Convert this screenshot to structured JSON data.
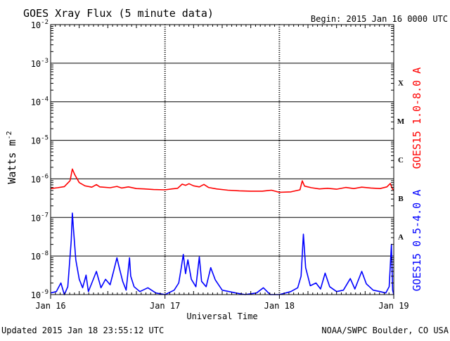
{
  "header": {
    "title": "GOES Xray Flux (5 minute data)",
    "begin": "Begin:  2015 Jan 16 0000 UTC"
  },
  "footer": {
    "updated": "Updated 2015 Jan 18 23:55:12 UTC",
    "source": "NOAA/SWPC Boulder, CO USA"
  },
  "colors": {
    "long_channel": "#ff0000",
    "short_channel": "#0000ff",
    "grid": "#000000",
    "background": "#ffffff"
  },
  "chart_data": {
    "type": "line",
    "title": "GOES Xray Flux (5 minute data)",
    "xlabel": "Universal Time",
    "ylabel_main": "Watts m",
    "ylabel_sup": "-2",
    "yscale": "log",
    "ylim": [
      1e-09,
      0.01
    ],
    "x_unit": "days since 2015 Jan 16 0000 UTC",
    "xlim": [
      0,
      3
    ],
    "x_ticks": [
      {
        "x": 0,
        "label": "Jan 16"
      },
      {
        "x": 1,
        "label": "Jan 17"
      },
      {
        "x": 2,
        "label": "Jan 18"
      },
      {
        "x": 3,
        "label": "Jan 19"
      }
    ],
    "y_ticks": [
      {
        "exp": -2,
        "base": "10",
        "sup": "-2"
      },
      {
        "exp": -3,
        "base": "10",
        "sup": "-3"
      },
      {
        "exp": -4,
        "base": "10",
        "sup": "-4"
      },
      {
        "exp": -5,
        "base": "10",
        "sup": "-5"
      },
      {
        "exp": -6,
        "base": "10",
        "sup": "-6"
      },
      {
        "exp": -7,
        "base": "10",
        "sup": "-7"
      },
      {
        "exp": -8,
        "base": "10",
        "sup": "-8"
      },
      {
        "exp": -9,
        "base": "10",
        "sup": "-9"
      }
    ],
    "flare_classes": [
      {
        "label": "X",
        "exp": -3.5
      },
      {
        "label": "M",
        "exp": -4.5
      },
      {
        "label": "C",
        "exp": -5.5
      },
      {
        "label": "B",
        "exp": -6.5
      },
      {
        "label": "A",
        "exp": -7.5
      }
    ],
    "grid": true,
    "series": [
      {
        "name": "GOES15 1.0-8.0 A",
        "color": "#ff0000",
        "points": [
          [
            0.0,
            5.6e-07
          ],
          [
            0.06,
            5.9e-07
          ],
          [
            0.12,
            6.3e-07
          ],
          [
            0.17,
            9e-07
          ],
          [
            0.19,
            1.8e-06
          ],
          [
            0.21,
            1.3e-06
          ],
          [
            0.25,
            8e-07
          ],
          [
            0.3,
            6.6e-07
          ],
          [
            0.36,
            6.1e-07
          ],
          [
            0.4,
            7.1e-07
          ],
          [
            0.43,
            6.2e-07
          ],
          [
            0.52,
            5.9e-07
          ],
          [
            0.58,
            6.4e-07
          ],
          [
            0.62,
            5.8e-07
          ],
          [
            0.68,
            6.2e-07
          ],
          [
            0.75,
            5.6e-07
          ],
          [
            0.82,
            5.5e-07
          ],
          [
            0.9,
            5.3e-07
          ],
          [
            1.0,
            5.2e-07
          ],
          [
            1.06,
            5.5e-07
          ],
          [
            1.11,
            5.7e-07
          ],
          [
            1.15,
            7.3e-07
          ],
          [
            1.18,
            6.8e-07
          ],
          [
            1.21,
            7.5e-07
          ],
          [
            1.25,
            6.6e-07
          ],
          [
            1.3,
            6.2e-07
          ],
          [
            1.34,
            7.2e-07
          ],
          [
            1.38,
            6e-07
          ],
          [
            1.45,
            5.5e-07
          ],
          [
            1.55,
            5.1e-07
          ],
          [
            1.65,
            4.9e-07
          ],
          [
            1.75,
            4.8e-07
          ],
          [
            1.85,
            4.8e-07
          ],
          [
            1.93,
            5.1e-07
          ],
          [
            2.0,
            4.5e-07
          ],
          [
            2.1,
            4.6e-07
          ],
          [
            2.18,
            5.2e-07
          ],
          [
            2.2,
            8.9e-07
          ],
          [
            2.22,
            6.5e-07
          ],
          [
            2.28,
            5.9e-07
          ],
          [
            2.35,
            5.5e-07
          ],
          [
            2.42,
            5.7e-07
          ],
          [
            2.5,
            5.4e-07
          ],
          [
            2.58,
            6e-07
          ],
          [
            2.65,
            5.6e-07
          ],
          [
            2.72,
            6.1e-07
          ],
          [
            2.8,
            5.8e-07
          ],
          [
            2.88,
            5.6e-07
          ],
          [
            2.94,
            6.2e-07
          ],
          [
            2.97,
            7.6e-07
          ],
          [
            2.99,
            5.4e-07
          ],
          [
            3.0,
            5.2e-07
          ]
        ]
      },
      {
        "name": "GOES15 0.5-4.0 A",
        "color": "#0000ff",
        "points": [
          [
            0.0,
            1.1e-09
          ],
          [
            0.05,
            1.2e-09
          ],
          [
            0.09,
            2e-09
          ],
          [
            0.12,
            1e-09
          ],
          [
            0.15,
            1.6e-09
          ],
          [
            0.18,
            2.5e-08
          ],
          [
            0.19,
            1.3e-07
          ],
          [
            0.2,
            5e-08
          ],
          [
            0.22,
            8e-09
          ],
          [
            0.25,
            2.5e-09
          ],
          [
            0.28,
            1.5e-09
          ],
          [
            0.31,
            3.2e-09
          ],
          [
            0.33,
            1.2e-09
          ],
          [
            0.36,
            2e-09
          ],
          [
            0.4,
            4e-09
          ],
          [
            0.44,
            1.5e-09
          ],
          [
            0.48,
            2.5e-09
          ],
          [
            0.52,
            1.8e-09
          ],
          [
            0.55,
            4e-09
          ],
          [
            0.58,
            9e-09
          ],
          [
            0.6,
            5e-09
          ],
          [
            0.63,
            2.2e-09
          ],
          [
            0.66,
            1.3e-09
          ],
          [
            0.69,
            9e-09
          ],
          [
            0.7,
            3e-09
          ],
          [
            0.73,
            1.6e-09
          ],
          [
            0.78,
            1.2e-09
          ],
          [
            0.85,
            1.5e-09
          ],
          [
            0.92,
            1.1e-09
          ],
          [
            1.0,
            1e-09
          ],
          [
            1.08,
            1.3e-09
          ],
          [
            1.12,
            2e-09
          ],
          [
            1.14,
            4.5e-09
          ],
          [
            1.16,
            1.1e-08
          ],
          [
            1.18,
            3.5e-09
          ],
          [
            1.2,
            8e-09
          ],
          [
            1.23,
            2.5e-09
          ],
          [
            1.27,
            1.6e-09
          ],
          [
            1.3,
            9.5e-09
          ],
          [
            1.32,
            2.2e-09
          ],
          [
            1.36,
            1.6e-09
          ],
          [
            1.4,
            5e-09
          ],
          [
            1.44,
            2.4e-09
          ],
          [
            1.5,
            1.3e-09
          ],
          [
            1.56,
            1.2e-09
          ],
          [
            1.62,
            1.1e-09
          ],
          [
            1.7,
            1e-09
          ],
          [
            1.8,
            1.1e-09
          ],
          [
            1.86,
            1.5e-09
          ],
          [
            1.92,
            1e-09
          ],
          [
            2.0,
            1e-09
          ],
          [
            2.1,
            1.2e-09
          ],
          [
            2.16,
            1.5e-09
          ],
          [
            2.19,
            3e-09
          ],
          [
            2.21,
            3.7e-08
          ],
          [
            2.23,
            5e-09
          ],
          [
            2.27,
            1.7e-09
          ],
          [
            2.32,
            2e-09
          ],
          [
            2.36,
            1.4e-09
          ],
          [
            2.4,
            3.6e-09
          ],
          [
            2.44,
            1.6e-09
          ],
          [
            2.5,
            1.2e-09
          ],
          [
            2.56,
            1.3e-09
          ],
          [
            2.62,
            2.6e-09
          ],
          [
            2.66,
            1.4e-09
          ],
          [
            2.72,
            4e-09
          ],
          [
            2.76,
            1.9e-09
          ],
          [
            2.82,
            1.3e-09
          ],
          [
            2.88,
            1.2e-09
          ],
          [
            2.93,
            1.1e-09
          ],
          [
            2.96,
            1.6e-09
          ],
          [
            2.98,
            2e-08
          ],
          [
            2.99,
            1.3e-09
          ],
          [
            3.0,
            1e-09
          ]
        ]
      }
    ]
  }
}
